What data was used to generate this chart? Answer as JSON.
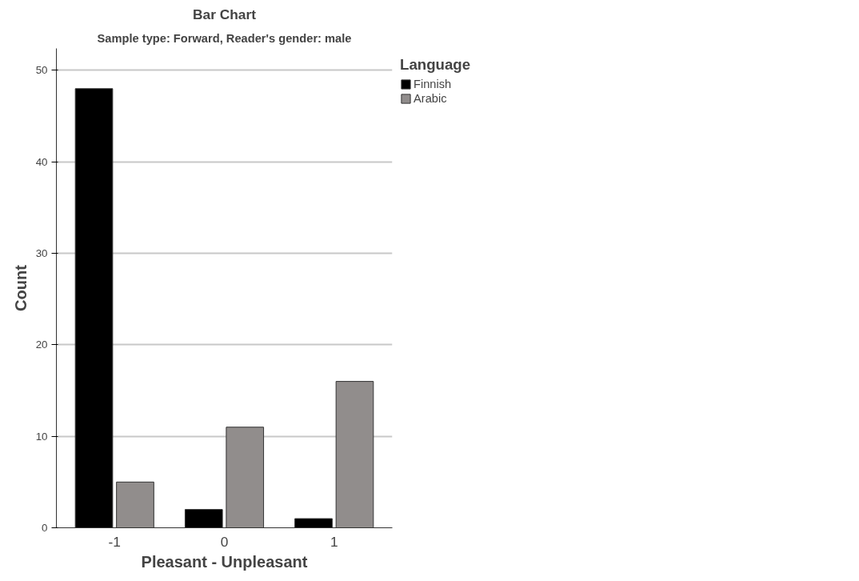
{
  "chart_data": {
    "type": "bar",
    "title": "Bar Chart",
    "subtitle": "Sample type: Forward, Reader's gender: male",
    "xlabel": "Pleasant - Unpleasant",
    "ylabel": "Count",
    "legend_title": "Language",
    "categories": [
      "-1",
      "0",
      "1"
    ],
    "series": [
      {
        "name": "Finnish",
        "color": "#000000",
        "values": [
          48,
          2,
          1
        ]
      },
      {
        "name": "Arabic",
        "color": "#918d8c",
        "values": [
          5,
          11,
          16
        ]
      }
    ],
    "ylim": [
      0,
      52.4
    ],
    "yticks": [
      0,
      10,
      20,
      30,
      40,
      50
    ],
    "grid": "y",
    "legend": "top right"
  }
}
